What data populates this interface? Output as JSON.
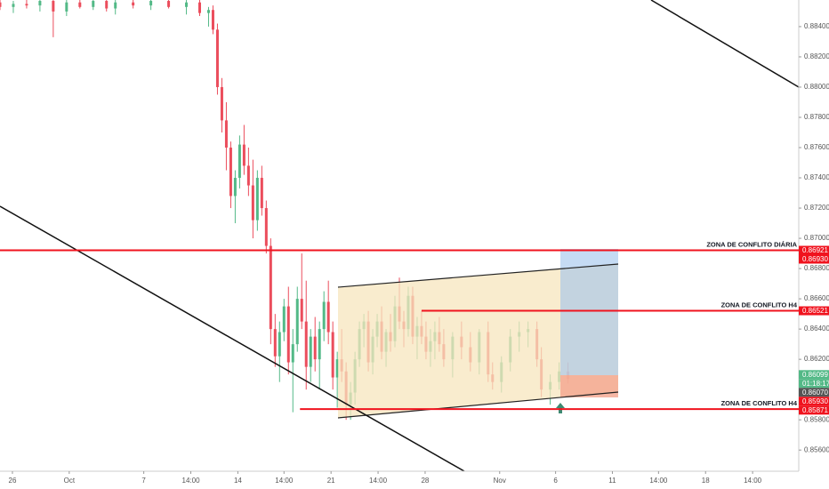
{
  "chart_data": {
    "type": "candlestick",
    "xlim": [
      0,
      180
    ],
    "ylim": [
      0.8546,
      0.88576
    ],
    "xticks": [
      {
        "value": 2.8,
        "label": "26"
      },
      {
        "value": 15.6,
        "label": "Oct"
      },
      {
        "value": 32.4,
        "label": "7"
      },
      {
        "value": 43,
        "label": "14:00"
      },
      {
        "value": 53.6,
        "label": "14"
      },
      {
        "value": 64,
        "label": "14:00"
      },
      {
        "value": 74.6,
        "label": "21"
      },
      {
        "value": 85.2,
        "label": "14:00"
      },
      {
        "value": 95.8,
        "label": "28"
      },
      {
        "value": 112.6,
        "label": "Nov"
      },
      {
        "value": 125.2,
        "label": "6"
      },
      {
        "value": 138,
        "label": "11"
      },
      {
        "value": 148.4,
        "label": "14:00"
      },
      {
        "value": 159,
        "label": "18"
      },
      {
        "value": 169.6,
        "label": "14:00"
      }
    ],
    "yticks": [
      {
        "value": 0.856,
        "label": "0.85600"
      },
      {
        "value": 0.858,
        "label": "0.85800"
      },
      {
        "value": 0.86,
        "label": "0.86000"
      },
      {
        "value": 0.862,
        "label": "0.86200"
      },
      {
        "value": 0.864,
        "label": "0.86400"
      },
      {
        "value": 0.866,
        "label": "0.86600"
      },
      {
        "value": 0.868,
        "label": "0.86800"
      },
      {
        "value": 0.87,
        "label": "0.87000"
      },
      {
        "value": 0.872,
        "label": "0.87200"
      },
      {
        "value": 0.874,
        "label": "0.87400"
      },
      {
        "value": 0.876,
        "label": "0.87600"
      },
      {
        "value": 0.878,
        "label": "0.87800"
      },
      {
        "value": 0.88,
        "label": "0.88000"
      },
      {
        "value": 0.882,
        "label": "0.88200"
      },
      {
        "value": 0.884,
        "label": "0.88400"
      }
    ],
    "up_color": "#53b987",
    "down_color": "#eb4d5c",
    "x": [
      0,
      3,
      6,
      9,
      12,
      15,
      18,
      21,
      24,
      26,
      30,
      34,
      38,
      42,
      45,
      47,
      48,
      49,
      50,
      51,
      52,
      53,
      54,
      55,
      56,
      57,
      58,
      59,
      60,
      61,
      62,
      63,
      64,
      65,
      66,
      67,
      68,
      69,
      70,
      71,
      72,
      73,
      74,
      75,
      76,
      77,
      78,
      79,
      80,
      81,
      82,
      83,
      84,
      85,
      86,
      87,
      88,
      89,
      90,
      91,
      92,
      93,
      94,
      95,
      96,
      97,
      98,
      99,
      100,
      102,
      104,
      106,
      108,
      110,
      111,
      113,
      115,
      117,
      119,
      121,
      122,
      124,
      126,
      128
    ],
    "open": [
      0.8856,
      0.8853,
      0.8855,
      0.8854,
      0.8857,
      0.885,
      0.8856,
      0.8853,
      0.8857,
      0.8852,
      0.8856,
      0.8854,
      0.8857,
      0.8853,
      0.8856,
      0.8849,
      0.8851,
      0.8838,
      0.88,
      0.8778,
      0.876,
      0.8728,
      0.874,
      0.8762,
      0.8748,
      0.8735,
      0.8712,
      0.874,
      0.872,
      0.8695,
      0.864,
      0.8622,
      0.8638,
      0.8655,
      0.8618,
      0.863,
      0.866,
      0.8645,
      0.8615,
      0.8635,
      0.862,
      0.864,
      0.8658,
      0.8638,
      0.8608,
      0.862,
      0.8612,
      0.859,
      0.8598,
      0.862,
      0.864,
      0.8645,
      0.8618,
      0.8635,
      0.8645,
      0.8625,
      0.8638,
      0.8632,
      0.8655,
      0.8645,
      0.864,
      0.8662,
      0.8635,
      0.8642,
      0.8635,
      0.8625,
      0.8632,
      0.8638,
      0.863,
      0.862,
      0.8635,
      0.8628,
      0.8618,
      0.8638,
      0.861,
      0.8605,
      0.8618,
      0.8635,
      0.8638,
      0.864,
      0.862,
      0.86,
      0.8605,
      0.8612
    ],
    "high": [
      0.8858,
      0.8857,
      0.8858,
      0.8858,
      0.8858,
      0.8858,
      0.8858,
      0.8858,
      0.8858,
      0.8858,
      0.8858,
      0.8858,
      0.8858,
      0.8858,
      0.8858,
      0.8853,
      0.8854,
      0.8842,
      0.8806,
      0.879,
      0.8764,
      0.8745,
      0.8768,
      0.8775,
      0.876,
      0.8752,
      0.8745,
      0.8748,
      0.8725,
      0.87,
      0.865,
      0.8645,
      0.866,
      0.8668,
      0.864,
      0.8668,
      0.869,
      0.8672,
      0.864,
      0.8648,
      0.8645,
      0.8665,
      0.8672,
      0.8645,
      0.8625,
      0.864,
      0.8618,
      0.8605,
      0.8625,
      0.8645,
      0.865,
      0.8652,
      0.864,
      0.865,
      0.8655,
      0.864,
      0.865,
      0.8662,
      0.8674,
      0.8652,
      0.8668,
      0.8668,
      0.8648,
      0.8652,
      0.8645,
      0.864,
      0.8645,
      0.8648,
      0.864,
      0.8638,
      0.8645,
      0.8638,
      0.864,
      0.8645,
      0.8618,
      0.8622,
      0.864,
      0.8645,
      0.8645,
      0.8645,
      0.8628,
      0.861,
      0.8618,
      0.8618
    ],
    "low": [
      0.8851,
      0.8849,
      0.8852,
      0.885,
      0.8833,
      0.8847,
      0.8852,
      0.8851,
      0.885,
      0.8848,
      0.8852,
      0.8851,
      0.8852,
      0.8848,
      0.8847,
      0.884,
      0.8835,
      0.8795,
      0.877,
      0.8745,
      0.872,
      0.871,
      0.8733,
      0.8742,
      0.8728,
      0.87,
      0.8705,
      0.8715,
      0.869,
      0.863,
      0.8615,
      0.8605,
      0.8632,
      0.861,
      0.8585,
      0.8625,
      0.864,
      0.86,
      0.8605,
      0.8612,
      0.86,
      0.8632,
      0.863,
      0.86,
      0.8588,
      0.8605,
      0.858,
      0.858,
      0.859,
      0.8615,
      0.8628,
      0.8612,
      0.861,
      0.8628,
      0.862,
      0.8615,
      0.8625,
      0.8628,
      0.864,
      0.8628,
      0.8635,
      0.863,
      0.862,
      0.863,
      0.862,
      0.8615,
      0.862,
      0.8625,
      0.8615,
      0.8608,
      0.862,
      0.8612,
      0.861,
      0.8605,
      0.86,
      0.8598,
      0.8612,
      0.8625,
      0.8628,
      0.8615,
      0.8595,
      0.859,
      0.86,
      0.8604
    ],
    "close": [
      0.8853,
      0.8855,
      0.8854,
      0.8857,
      0.885,
      0.8856,
      0.8853,
      0.8857,
      0.8852,
      0.8856,
      0.8854,
      0.8857,
      0.8853,
      0.8856,
      0.8849,
      0.8851,
      0.8838,
      0.88,
      0.8778,
      0.876,
      0.8728,
      0.874,
      0.8762,
      0.8748,
      0.8735,
      0.8712,
      0.874,
      0.872,
      0.8695,
      0.864,
      0.8622,
      0.8638,
      0.8655,
      0.8618,
      0.863,
      0.866,
      0.8645,
      0.8615,
      0.8635,
      0.862,
      0.864,
      0.8658,
      0.8638,
      0.8608,
      0.862,
      0.8612,
      0.859,
      0.8598,
      0.862,
      0.864,
      0.8645,
      0.8618,
      0.8635,
      0.8645,
      0.8625,
      0.8638,
      0.8632,
      0.8655,
      0.8645,
      0.864,
      0.8662,
      0.8635,
      0.8642,
      0.8635,
      0.8625,
      0.8632,
      0.8638,
      0.863,
      0.862,
      0.8635,
      0.8628,
      0.8618,
      0.8638,
      0.861,
      0.8605,
      0.8618,
      0.8635,
      0.8638,
      0.864,
      0.862,
      0.86,
      0.8605,
      0.8612,
      0.8607
    ],
    "zones": [
      {
        "name": "ZONA DE CONFLITO DIÁRIA",
        "value": 0.86921,
        "from": 0
      },
      {
        "name": "ZONA DE CONFLITO H4",
        "value": 0.86521,
        "from": 95
      },
      {
        "name": "ZONA DE CONFLITO H4",
        "value": 0.85871,
        "from": 67.6
      }
    ],
    "zone_color": "#f0131e",
    "axis_tags": [
      {
        "value": 0.86921,
        "label": "0.86921",
        "color": "#f0131e"
      },
      {
        "value": 0.8693,
        "label": "0.86930",
        "color": "#f0131e"
      },
      {
        "value": 0.86521,
        "label": "0.86521",
        "color": "#f0131e"
      },
      {
        "value": 0.86099,
        "label": "0.86099",
        "color": "#53b987"
      },
      {
        "value": 0.8607,
        "label": "0.86070",
        "color": "#555555"
      },
      {
        "value": 0.8593,
        "label": "0.85930",
        "color": "#f0131e"
      },
      {
        "value": 0.85871,
        "label": "0.85871",
        "color": "#f0131e"
      }
    ],
    "countdown": "01:18:17"
  }
}
